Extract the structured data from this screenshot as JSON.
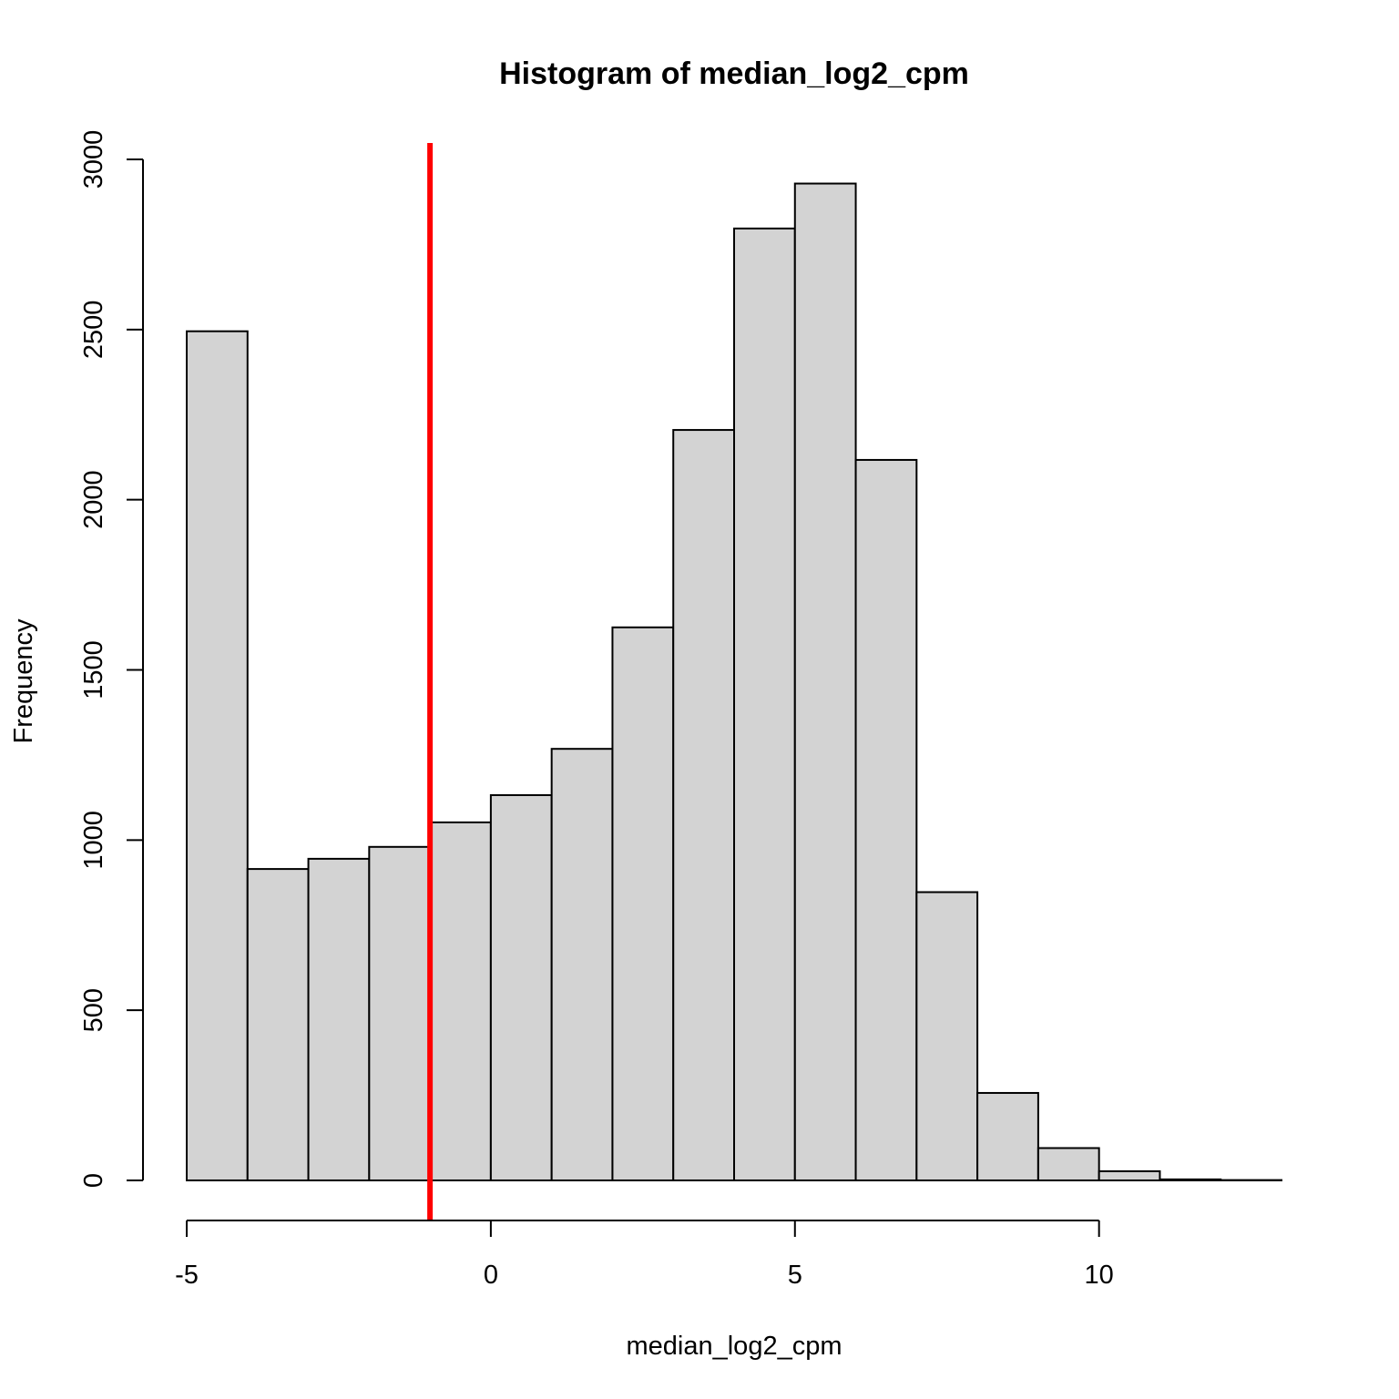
{
  "chart_data": {
    "type": "bar",
    "subtype": "histogram",
    "title": "Histogram of median_log2_cpm",
    "xlabel": "median_log2_cpm",
    "ylabel": "Frequency",
    "bin_edges": [
      -5,
      -4,
      -3,
      -2,
      -1,
      0,
      1,
      2,
      3,
      4,
      5,
      6,
      7,
      8,
      9,
      10,
      11,
      12,
      13
    ],
    "values": [
      2495,
      915,
      945,
      980,
      1052,
      1132,
      1268,
      1625,
      2205,
      2797,
      2929,
      2117,
      847,
      257,
      95,
      27,
      3,
      1
    ],
    "xlim": [
      -5,
      13
    ],
    "ylim": [
      0,
      3000
    ],
    "x_ticks": [
      -5,
      0,
      5,
      10
    ],
    "x_tick_labels": [
      "-5",
      "0",
      "5",
      "10"
    ],
    "y_ticks": [
      0,
      500,
      1000,
      1500,
      2000,
      2500,
      3000
    ],
    "y_tick_labels": [
      "0",
      "500",
      "1000",
      "1500",
      "2000",
      "2500",
      "3000"
    ],
    "bar_fill": "#d3d3d3",
    "bar_stroke": "#000000",
    "reference_line": {
      "x": -1,
      "color": "#ff0000",
      "orientation": "vertical"
    },
    "grid": false,
    "legend": "none"
  }
}
